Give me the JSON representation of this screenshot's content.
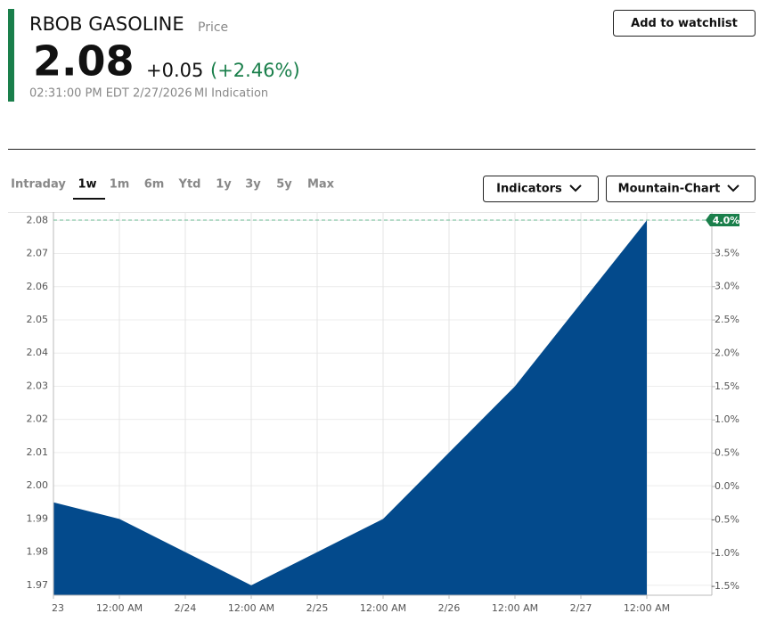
{
  "header": {
    "title": "RBOB GASOLINE",
    "subtitle": "Price",
    "price": "2.08",
    "change": "+0.05",
    "change_pct": "(+2.46%)",
    "timestamp": "02:31:00 PM EDT 2/27/2026",
    "source": "MI Indication",
    "watch_button": "Add to watchlist"
  },
  "tabs": [
    "Intraday",
    "1w",
    "1m",
    "6m",
    "Ytd",
    "1y",
    "3y",
    "5y",
    "Max"
  ],
  "dropdowns": [
    "Indicators",
    "Mountain-Chart"
  ],
  "chart_data": {
    "type": "area",
    "categories": [
      "23",
      "12:00 AM",
      "2/24",
      "12:00 AM",
      "2/25",
      "12:00 AM",
      "2/26",
      "12:00 AM",
      "2/27",
      "12:00 AM"
    ],
    "values": [
      1.995,
      1.99,
      1.98,
      1.97,
      1.98,
      1.99,
      2.01,
      2.03,
      2.055,
      2.08
    ],
    "color": "#034a8c",
    "ylim": [
      1.967,
      2.0825
    ],
    "yticks": [
      1.97,
      1.98,
      1.99,
      {
        "value": 2,
        "label": "2.00"
      },
      2.01,
      2.02,
      2.03,
      2.04,
      2.05,
      2.06,
      2.07,
      2.08
    ],
    "y2lim": [
      -1.632,
      4.12
    ],
    "y2ticks": [
      {
        "value": -1.5,
        "label": "-1.5%"
      },
      {
        "value": -1,
        "label": "-1.0%"
      },
      {
        "value": -0.5,
        "label": "-0.5%"
      },
      {
        "value": 0,
        "label": "0.0%"
      },
      {
        "value": 0.5,
        "label": "0.5%"
      },
      {
        "value": 1,
        "label": "1.0%"
      },
      {
        "value": 1.5,
        "label": "1.5%"
      },
      {
        "value": 2,
        "label": "2.0%"
      },
      {
        "value": 2.5,
        "label": "2.5%"
      },
      {
        "value": 3,
        "label": "3.0%"
      },
      {
        "value": 3.5,
        "label": "3.5%"
      },
      {
        "value": 4,
        "label": "4.0%"
      }
    ],
    "grid": true
  }
}
